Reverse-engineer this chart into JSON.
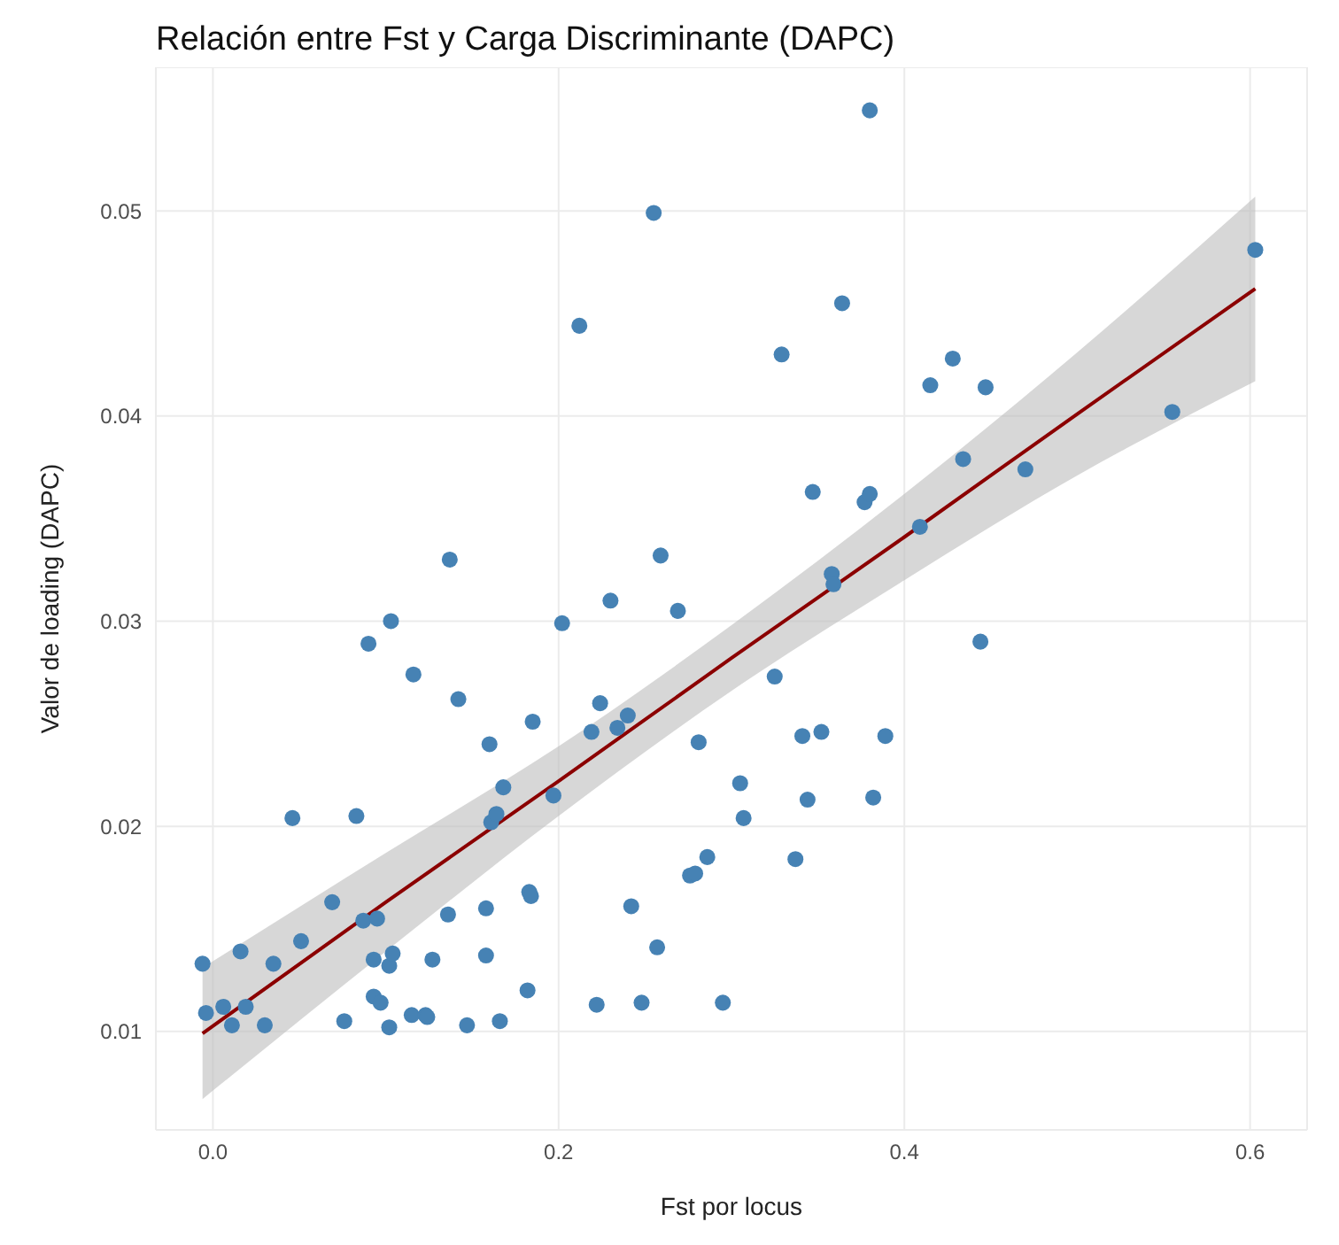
{
  "chart_data": {
    "type": "scatter",
    "title": "Relación entre Fst y Carga Discriminante (DAPC)",
    "xlabel": "Fst por locus",
    "ylabel": "Valor de loading (DAPC)",
    "xlim": [
      -0.033,
      0.633
    ],
    "ylim": [
      0.0052,
      0.057
    ],
    "xticks": [
      {
        "value": 0,
        "label": "0.0"
      },
      0.2,
      0.4,
      0.6
    ],
    "yticks": [
      0.01,
      0.02,
      0.03,
      0.04,
      0.05
    ],
    "grid": true,
    "legend": false,
    "series": [
      {
        "marker": "circle",
        "color": "#4682b4",
        "x": [
          -0.006,
          -0.004,
          0.006,
          0.011,
          0.016,
          0.019,
          0.03,
          0.035,
          0.046,
          0.051,
          0.069,
          0.076,
          0.083,
          0.087,
          0.09,
          0.093,
          0.093,
          0.095,
          0.097,
          0.102,
          0.102,
          0.104,
          0.103,
          0.115,
          0.116,
          0.123,
          0.124,
          0.127,
          0.136,
          0.137,
          0.142,
          0.147,
          0.158,
          0.158,
          0.16,
          0.161,
          0.164,
          0.166,
          0.168,
          0.182,
          0.183,
          0.184,
          0.185,
          0.197,
          0.202,
          0.212,
          0.219,
          0.222,
          0.224,
          0.23,
          0.234,
          0.24,
          0.242,
          0.248,
          0.255,
          0.257,
          0.259,
          0.269,
          0.276,
          0.279,
          0.281,
          0.286,
          0.295,
          0.305,
          0.307,
          0.325,
          0.329,
          0.337,
          0.341,
          0.344,
          0.347,
          0.352,
          0.358,
          0.359,
          0.364,
          0.377,
          0.38,
          0.38,
          0.382,
          0.389,
          0.409,
          0.415,
          0.428,
          0.434,
          0.444,
          0.447,
          0.47,
          0.555,
          0.603
        ],
        "values": [
          0.0133,
          0.0109,
          0.0112,
          0.0103,
          0.0139,
          0.0112,
          0.0103,
          0.0133,
          0.0204,
          0.0144,
          0.0163,
          0.0105,
          0.0205,
          0.0154,
          0.0289,
          0.0135,
          0.0117,
          0.0155,
          0.0114,
          0.0102,
          0.0132,
          0.0138,
          0.03,
          0.0108,
          0.0274,
          0.0108,
          0.0107,
          0.0135,
          0.0157,
          0.033,
          0.0262,
          0.0103,
          0.016,
          0.0137,
          0.024,
          0.0202,
          0.0206,
          0.0105,
          0.0219,
          0.012,
          0.0168,
          0.0166,
          0.0251,
          0.0215,
          0.0299,
          0.0444,
          0.0246,
          0.0113,
          0.026,
          0.031,
          0.0248,
          0.0254,
          0.0161,
          0.0114,
          0.0499,
          0.0141,
          0.0332,
          0.0305,
          0.0176,
          0.0177,
          0.0241,
          0.0185,
          0.0114,
          0.0221,
          0.0204,
          0.0273,
          0.043,
          0.0184,
          0.0244,
          0.0213,
          0.0363,
          0.0246,
          0.0323,
          0.0318,
          0.0455,
          0.0358,
          0.0362,
          0.0549,
          0.0214,
          0.0244,
          0.0346,
          0.0415,
          0.0428,
          0.0379,
          0.029,
          0.0414,
          0.0374,
          0.0402,
          0.0481
        ]
      },
      {
        "type": "line",
        "color": "#8b0000",
        "x": [
          -0.006,
          0.1,
          0.2,
          0.3,
          0.4,
          0.5,
          0.603
        ],
        "values": [
          0.0099,
          0.0163,
          0.0222,
          0.0282,
          0.0341,
          0.0401,
          0.0462
        ],
        "lower": [
          0.0067,
          0.0139,
          0.0205,
          0.0266,
          0.032,
          0.0371,
          0.0417
        ],
        "upper": [
          0.0131,
          0.0187,
          0.0239,
          0.0298,
          0.0362,
          0.0431,
          0.0507
        ]
      }
    ]
  }
}
